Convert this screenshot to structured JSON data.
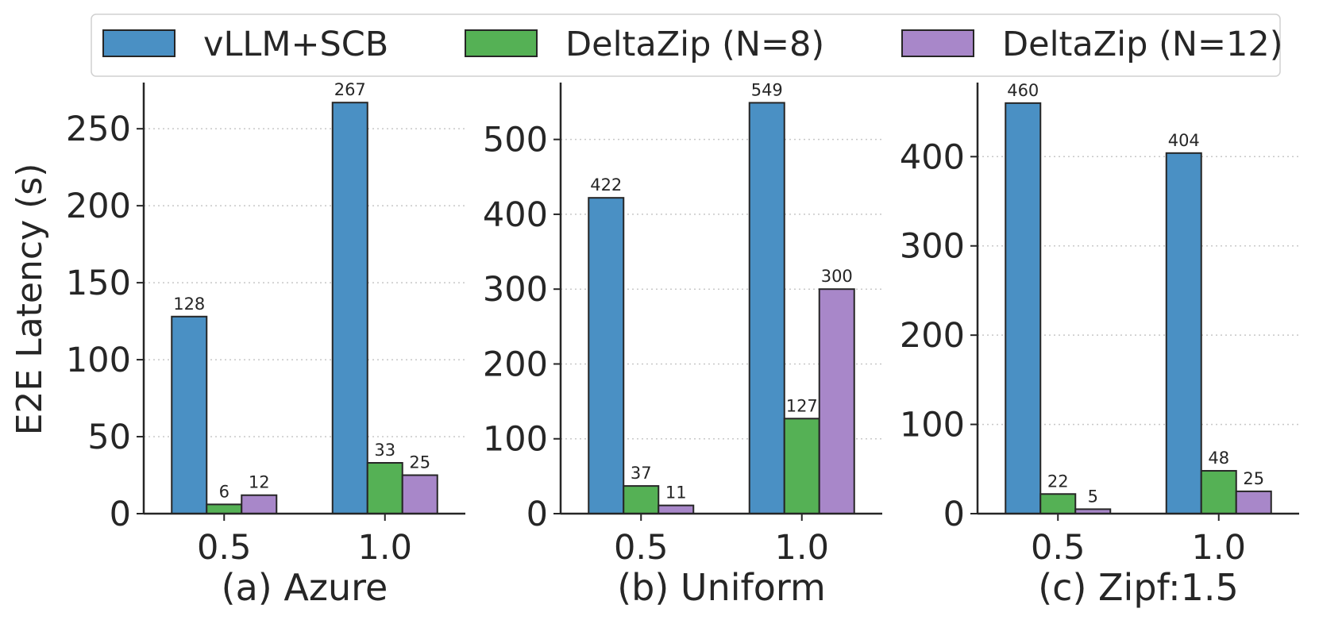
{
  "legend": [
    {
      "label": "vLLM+SCB",
      "color": "#4a90c4"
    },
    {
      "label": "DeltaZip (N=8)",
      "color": "#55b155"
    },
    {
      "label": "DeltaZip (N=12)",
      "color": "#a887c9"
    }
  ],
  "ylabel": "E2E Latency (s)",
  "chart_data": [
    {
      "type": "bar",
      "title": "(a) Azure",
      "categories": [
        "0.5",
        "1.0"
      ],
      "ylim": [
        0,
        280
      ],
      "yticks": [
        0,
        50,
        100,
        150,
        200,
        250
      ],
      "series": [
        {
          "name": "vLLM+SCB",
          "values": [
            128,
            267
          ]
        },
        {
          "name": "DeltaZip (N=8)",
          "values": [
            6,
            33
          ]
        },
        {
          "name": "DeltaZip (N=12)",
          "values": [
            12,
            25
          ]
        }
      ]
    },
    {
      "type": "bar",
      "title": "(b) Uniform",
      "categories": [
        "0.5",
        "1.0"
      ],
      "ylim": [
        0,
        576
      ],
      "yticks": [
        0,
        100,
        200,
        300,
        400,
        500
      ],
      "series": [
        {
          "name": "vLLM+SCB",
          "values": [
            422,
            549
          ]
        },
        {
          "name": "DeltaZip (N=8)",
          "values": [
            37,
            127
          ]
        },
        {
          "name": "DeltaZip (N=12)",
          "values": [
            11,
            300
          ]
        }
      ]
    },
    {
      "type": "bar",
      "title": "(c) Zipf:1.5",
      "categories": [
        "0.5",
        "1.0"
      ],
      "ylim": [
        0,
        483
      ],
      "yticks": [
        0,
        100,
        200,
        300,
        400
      ],
      "series": [
        {
          "name": "vLLM+SCB",
          "values": [
            460,
            404
          ]
        },
        {
          "name": "DeltaZip (N=8)",
          "values": [
            22,
            48
          ]
        },
        {
          "name": "DeltaZip (N=12)",
          "values": [
            5,
            25
          ]
        }
      ]
    }
  ]
}
